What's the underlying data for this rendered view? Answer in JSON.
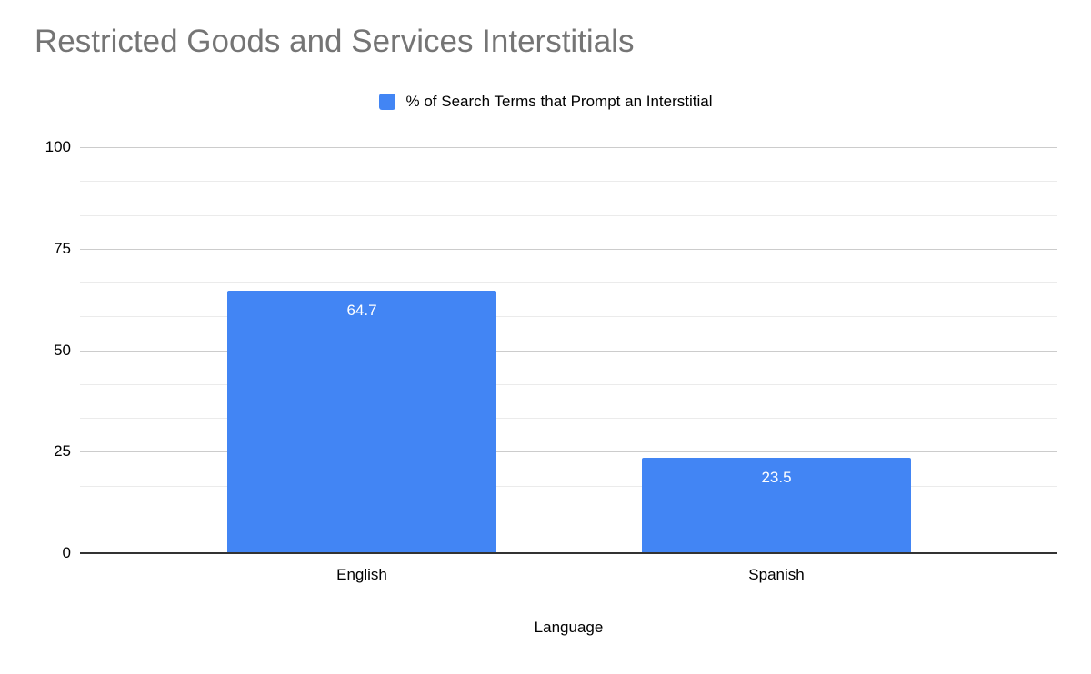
{
  "chart_data": {
    "type": "bar",
    "title": "Restricted Goods and Services Interstitials",
    "categories": [
      "English",
      "Spanish"
    ],
    "series": [
      {
        "name": "% of Search Terms that Prompt an Interstitial",
        "values": [
          64.7,
          23.5
        ]
      }
    ],
    "value_labels": [
      "64.7",
      "23.5"
    ],
    "xlabel": "Language",
    "ylabel": "",
    "ylim": [
      0,
      100
    ],
    "yticks": [
      0,
      25,
      50,
      75,
      100
    ],
    "minor_gridlines_between_major": 2,
    "grid": true,
    "legend_position": "top-center",
    "colors": {
      "bar": "#4285f4",
      "title": "#757575",
      "text": "#000000",
      "grid_major": "#cccccc",
      "grid_minor": "#ebebeb",
      "axis_line": "#333333",
      "value_label": "#ffffff"
    }
  }
}
